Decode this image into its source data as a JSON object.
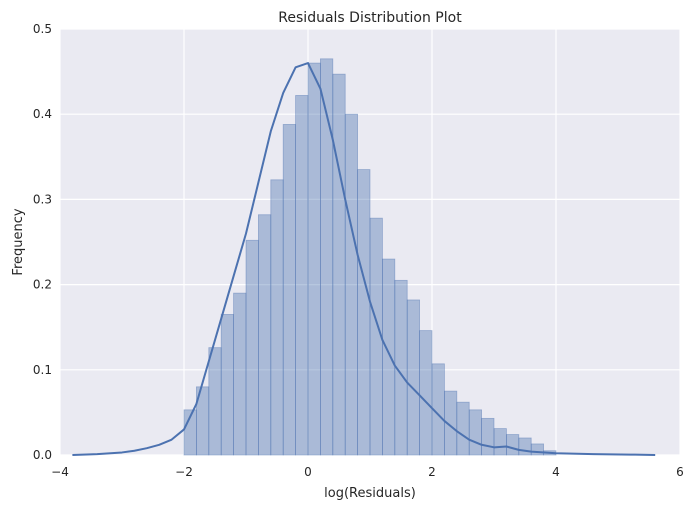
{
  "chart_data": {
    "type": "bar",
    "title": "Residuals Distribution Plot",
    "xlabel": "log(Residuals)",
    "ylabel": "Frequency",
    "xlim": [
      -4,
      6
    ],
    "ylim": [
      0,
      0.5
    ],
    "xticks": [
      "−4",
      "−2",
      "0",
      "2",
      "4",
      "6"
    ],
    "xtick_values": [
      -4,
      -2,
      0,
      2,
      4,
      6
    ],
    "yticks": [
      "0.0",
      "0.1",
      "0.2",
      "0.3",
      "0.4",
      "0.5"
    ],
    "ytick_values": [
      0,
      0.1,
      0.2,
      0.3,
      0.4,
      0.5
    ],
    "grid": true,
    "background": "#eaeaf2",
    "bar_color": "#4c72b0",
    "line_color": "#4c72b0",
    "bins": [
      {
        "x0": -2.0,
        "x1": -1.8,
        "y": 0.053
      },
      {
        "x0": -1.8,
        "x1": -1.6,
        "y": 0.08
      },
      {
        "x0": -1.6,
        "x1": -1.4,
        "y": 0.126
      },
      {
        "x0": -1.4,
        "x1": -1.2,
        "y": 0.165
      },
      {
        "x0": -1.2,
        "x1": -1.0,
        "y": 0.19
      },
      {
        "x0": -1.0,
        "x1": -0.8,
        "y": 0.252
      },
      {
        "x0": -0.8,
        "x1": -0.6,
        "y": 0.282
      },
      {
        "x0": -0.6,
        "x1": -0.4,
        "y": 0.323
      },
      {
        "x0": -0.4,
        "x1": -0.2,
        "y": 0.388
      },
      {
        "x0": -0.2,
        "x1": 0.0,
        "y": 0.422
      },
      {
        "x0": 0.0,
        "x1": 0.2,
        "y": 0.46
      },
      {
        "x0": 0.2,
        "x1": 0.4,
        "y": 0.465
      },
      {
        "x0": 0.4,
        "x1": 0.6,
        "y": 0.447
      },
      {
        "x0": 0.6,
        "x1": 0.8,
        "y": 0.4
      },
      {
        "x0": 0.8,
        "x1": 1.0,
        "y": 0.335
      },
      {
        "x0": 1.0,
        "x1": 1.2,
        "y": 0.278
      },
      {
        "x0": 1.2,
        "x1": 1.4,
        "y": 0.23
      },
      {
        "x0": 1.4,
        "x1": 1.6,
        "y": 0.205
      },
      {
        "x0": 1.6,
        "x1": 1.8,
        "y": 0.182
      },
      {
        "x0": 1.8,
        "x1": 2.0,
        "y": 0.146
      },
      {
        "x0": 2.0,
        "x1": 2.2,
        "y": 0.107
      },
      {
        "x0": 2.2,
        "x1": 2.4,
        "y": 0.075
      },
      {
        "x0": 2.4,
        "x1": 2.6,
        "y": 0.062
      },
      {
        "x0": 2.6,
        "x1": 2.8,
        "y": 0.053
      },
      {
        "x0": 2.8,
        "x1": 3.0,
        "y": 0.043
      },
      {
        "x0": 3.0,
        "x1": 3.2,
        "y": 0.031
      },
      {
        "x0": 3.2,
        "x1": 3.4,
        "y": 0.024
      },
      {
        "x0": 3.4,
        "x1": 3.6,
        "y": 0.02
      },
      {
        "x0": 3.6,
        "x1": 3.8,
        "y": 0.013
      },
      {
        "x0": 3.8,
        "x1": 4.0,
        "y": 0.005
      }
    ],
    "kde": {
      "x": [
        -3.8,
        -3.4,
        -3.0,
        -2.8,
        -2.6,
        -2.4,
        -2.2,
        -2.0,
        -1.8,
        -1.6,
        -1.4,
        -1.2,
        -1.0,
        -0.8,
        -0.6,
        -0.4,
        -0.2,
        0.0,
        0.2,
        0.4,
        0.6,
        0.8,
        1.0,
        1.2,
        1.4,
        1.6,
        1.8,
        2.0,
        2.2,
        2.4,
        2.6,
        2.8,
        3.0,
        3.2,
        3.4,
        3.6,
        4.0,
        4.6,
        5.2,
        5.6
      ],
      "y": [
        0.0,
        0.001,
        0.003,
        0.005,
        0.008,
        0.012,
        0.018,
        0.03,
        0.06,
        0.11,
        0.16,
        0.21,
        0.26,
        0.32,
        0.38,
        0.425,
        0.455,
        0.46,
        0.43,
        0.37,
        0.3,
        0.235,
        0.18,
        0.135,
        0.105,
        0.085,
        0.07,
        0.055,
        0.04,
        0.028,
        0.018,
        0.012,
        0.009,
        0.01,
        0.006,
        0.004,
        0.002,
        0.001,
        0.0005,
        0.0
      ]
    }
  }
}
